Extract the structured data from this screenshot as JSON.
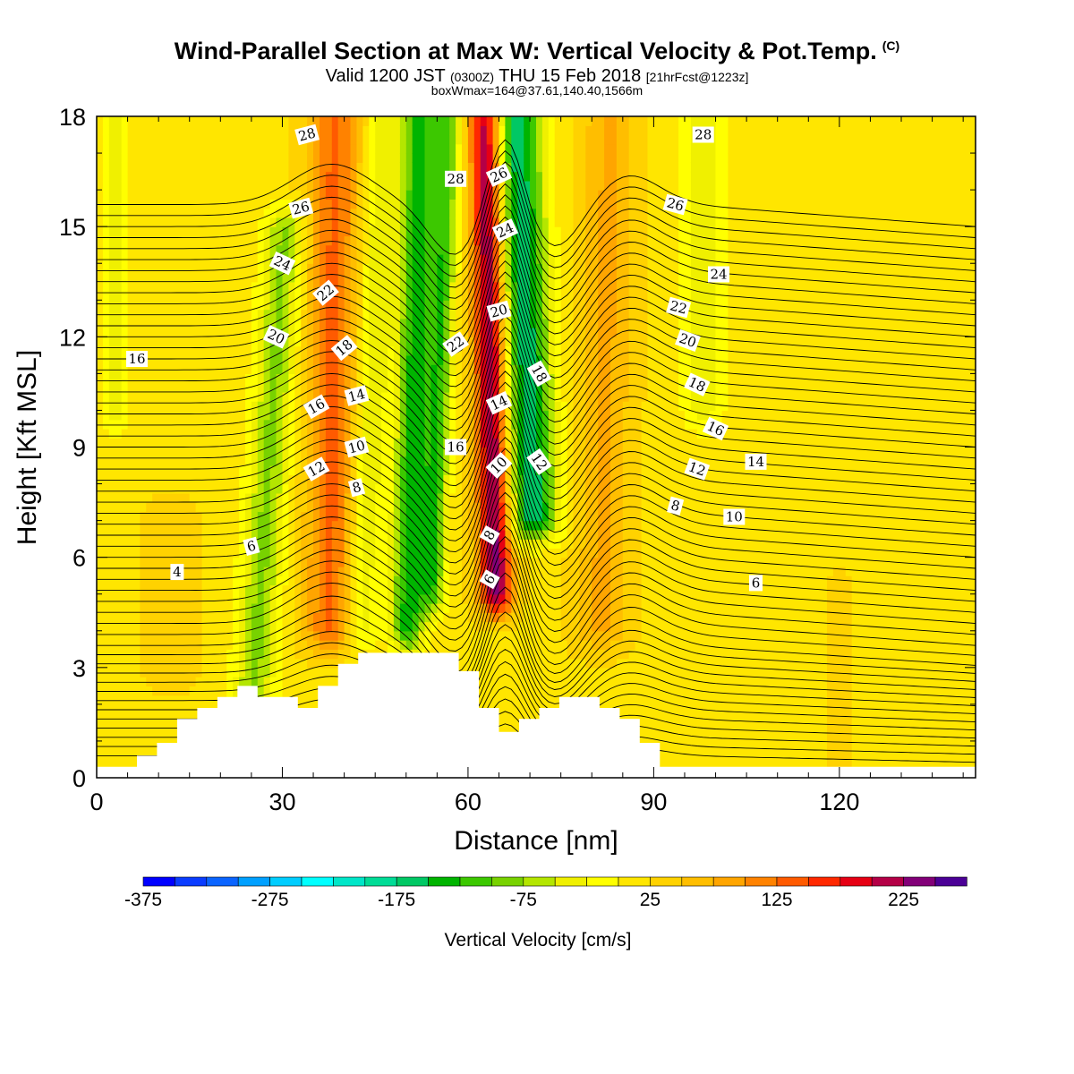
{
  "header": {
    "title": "Wind-Parallel Section at Max W: Vertical Velocity & Pot.Temp.",
    "copyright": "(C)",
    "subtitle_main": "Valid 1200 JST",
    "subtitle_utc": "(0300Z)",
    "subtitle_date": "THU 15 Feb 2018",
    "subtitle_fcst": "[21hrFcst@1223z]",
    "subtitle2": "boxWmax=164@37.61,140.40,1566m"
  },
  "chart_data": {
    "type": "heatmap",
    "title": "Wind-Parallel Section at Max W: Vertical Velocity & Pot.Temp.",
    "xlabel": "Distance [nm]",
    "ylabel": "Height [Kft MSL]",
    "xlim": [
      0,
      142
    ],
    "ylim": [
      0,
      18
    ],
    "x_ticks": [
      0,
      30,
      60,
      90,
      120
    ],
    "y_ticks": [
      0,
      3,
      6,
      9,
      12,
      15,
      18
    ],
    "grid": false,
    "colorbar": {
      "label": "Vertical Velocity [cm/s]",
      "min": -375,
      "max": 250,
      "step": 25,
      "tick_values": [
        -375,
        -275,
        -175,
        -75,
        25,
        125,
        225
      ],
      "tick_labels": [
        "-375",
        "-275",
        "-175",
        "-75",
        "25",
        "125",
        "225"
      ],
      "colors": [
        "#0000ff",
        "#0a3cff",
        "#0a64ff",
        "#00a0ff",
        "#00cdff",
        "#00ffff",
        "#00e6c8",
        "#00dc96",
        "#00c864",
        "#00b400",
        "#3cc800",
        "#78d200",
        "#b4e600",
        "#f0f000",
        "#ffff00",
        "#ffe600",
        "#ffd200",
        "#ffbe00",
        "#ffa500",
        "#ff8200",
        "#ff5a00",
        "#ff2800",
        "#e60014",
        "#b40046",
        "#820078",
        "#4b0096"
      ]
    },
    "velocity_field": {
      "background_cm_s": 20,
      "columns": [
        {
          "x": 3,
          "w": 3,
          "v": -40,
          "y_from": 10,
          "y_to": 18,
          "tilt": 0
        },
        {
          "x": 12,
          "w": 6,
          "v": 40,
          "y_from": 3,
          "y_to": 7,
          "tilt": 0
        },
        {
          "x": 28,
          "w": 5,
          "v": -80,
          "y_from": 2,
          "y_to": 15,
          "tilt": 0.4
        },
        {
          "x": 38,
          "w": 6,
          "v": 130,
          "y_from": 4,
          "y_to": 18,
          "tilt": 0.05
        },
        {
          "x": 44,
          "w": 4,
          "v": -50,
          "y_from": 4,
          "y_to": 18,
          "tilt": 0.3
        },
        {
          "x": 51,
          "w": 4,
          "v": -140,
          "y_from": 4,
          "y_to": 18,
          "tilt": 0.15
        },
        {
          "x": 55,
          "w": 3,
          "v": -110,
          "y_from": 5,
          "y_to": 18,
          "tilt": 0.2
        },
        {
          "x": 64,
          "w": 4,
          "v": 240,
          "y_from": 5,
          "y_to": 18,
          "tilt": -0.12
        },
        {
          "x": 70,
          "w": 6,
          "v": -170,
          "y_from": 7,
          "y_to": 18,
          "tilt": -0.25
        },
        {
          "x": 82,
          "w": 6,
          "v": 80,
          "y_from": 4,
          "y_to": 18,
          "tilt": 0.1
        },
        {
          "x": 98,
          "w": 5,
          "v": -40,
          "y_from": 10,
          "y_to": 18,
          "tilt": 0
        },
        {
          "x": 120,
          "w": 3,
          "v": 35,
          "y_from": 0,
          "y_to": 5,
          "tilt": 0
        }
      ]
    },
    "terrain": {
      "x": [
        0,
        6.5,
        6.5,
        9.75,
        9.75,
        13,
        13,
        16.25,
        16.25,
        19.5,
        19.5,
        22.75,
        22.75,
        26,
        26,
        32.5,
        32.5,
        35.75,
        35.75,
        39,
        39,
        42.25,
        42.25,
        45.5,
        45.5,
        58.5,
        58.5,
        61.75,
        61.75,
        65,
        65,
        68.25,
        68.25,
        71.5,
        71.5,
        74.75,
        74.75,
        81.25,
        81.25,
        84.5,
        84.5,
        87.75,
        87.75,
        91,
        91,
        142
      ],
      "height": [
        0.3,
        0.3,
        0.6,
        0.6,
        0.95,
        0.95,
        1.6,
        1.6,
        1.9,
        1.9,
        2.2,
        2.2,
        2.5,
        2.5,
        2.2,
        2.2,
        1.9,
        1.9,
        2.5,
        2.5,
        3.1,
        3.1,
        3.4,
        3.4,
        3.4,
        3.4,
        2.9,
        2.9,
        1.9,
        1.9,
        1.25,
        1.25,
        1.6,
        1.6,
        1.9,
        1.9,
        2.2,
        2.2,
        1.9,
        1.9,
        1.6,
        1.6,
        0.95,
        0.95,
        0.3,
        0.3
      ]
    },
    "theta_contours": {
      "levels": [
        3,
        3.5,
        4,
        4.5,
        5,
        5.5,
        6,
        6.5,
        7,
        7.5,
        8,
        8.5,
        9,
        9.5,
        10,
        10.5,
        11,
        11.5,
        12,
        12.5,
        13,
        13.5,
        14,
        14.5,
        15,
        15.5,
        16,
        16.5,
        17,
        17.5,
        18,
        18.5,
        19,
        19.5,
        20,
        20.5,
        21,
        21.5,
        22,
        22.5,
        23,
        23.5,
        24,
        24.5,
        25,
        25.5,
        26,
        26.5,
        27,
        27.5,
        28,
        28.5,
        29
      ],
      "base_height_kft": [
        0.6,
        0.85,
        1.1,
        1.35,
        1.6,
        1.85,
        2.1,
        2.35,
        2.6,
        2.85,
        3.1,
        3.35,
        3.6,
        3.9,
        4.2,
        4.5,
        4.8,
        5.1,
        5.4,
        5.7,
        6.0,
        6.3,
        6.6,
        6.9,
        7.2,
        7.5,
        7.8,
        8.1,
        8.4,
        8.7,
        9.0,
        9.3,
        9.6,
        9.9,
        10.2,
        10.5,
        10.8,
        11.1,
        11.4,
        11.7,
        12.0,
        12.3,
        12.6,
        12.9,
        13.2,
        13.5,
        13.8,
        14.1,
        14.4,
        14.7,
        15.0,
        15.3,
        15.6
      ],
      "labels": [
        {
          "text": "28",
          "x": 34,
          "y": 17.5,
          "angle": -15
        },
        {
          "text": "26",
          "x": 33,
          "y": 15.5,
          "angle": -15
        },
        {
          "text": "24",
          "x": 30,
          "y": 14.0,
          "angle": 25
        },
        {
          "text": "22",
          "x": 37,
          "y": 13.2,
          "angle": -40
        },
        {
          "text": "20",
          "x": 29,
          "y": 12.0,
          "angle": 25
        },
        {
          "text": "16",
          "x": 6.5,
          "y": 11.4,
          "angle": 0
        },
        {
          "text": "18",
          "x": 40,
          "y": 11.7,
          "angle": -40
        },
        {
          "text": "14",
          "x": 42,
          "y": 10.4,
          "angle": -15
        },
        {
          "text": "16",
          "x": 35.5,
          "y": 10.1,
          "angle": -30
        },
        {
          "text": "10",
          "x": 42,
          "y": 9.0,
          "angle": -15
        },
        {
          "text": "12",
          "x": 35.5,
          "y": 8.4,
          "angle": -30
        },
        {
          "text": "8",
          "x": 42,
          "y": 7.9,
          "angle": -15
        },
        {
          "text": "6",
          "x": 25,
          "y": 6.3,
          "angle": -15
        },
        {
          "text": "4",
          "x": 13,
          "y": 5.6,
          "angle": 0
        },
        {
          "text": "28",
          "x": 58,
          "y": 16.3,
          "angle": 0
        },
        {
          "text": "26",
          "x": 65,
          "y": 16.4,
          "angle": -25
        },
        {
          "text": "24",
          "x": 66,
          "y": 14.9,
          "angle": -25
        },
        {
          "text": "22",
          "x": 58,
          "y": 11.8,
          "angle": -35
        },
        {
          "text": "20",
          "x": 65,
          "y": 12.7,
          "angle": -15
        },
        {
          "text": "14",
          "x": 65,
          "y": 10.2,
          "angle": -25
        },
        {
          "text": "16",
          "x": 58,
          "y": 9.0,
          "angle": 0
        },
        {
          "text": "10",
          "x": 65,
          "y": 8.5,
          "angle": -45
        },
        {
          "text": "18",
          "x": 71.5,
          "y": 11.0,
          "angle": 60
        },
        {
          "text": "12",
          "x": 71.5,
          "y": 8.6,
          "angle": 55
        },
        {
          "text": "8",
          "x": 63.5,
          "y": 6.6,
          "angle": -60
        },
        {
          "text": "6",
          "x": 63.5,
          "y": 5.4,
          "angle": -60
        },
        {
          "text": "28",
          "x": 98,
          "y": 17.5,
          "angle": 0
        },
        {
          "text": "26",
          "x": 93.5,
          "y": 15.6,
          "angle": 15
        },
        {
          "text": "24",
          "x": 100.5,
          "y": 13.7,
          "angle": 0
        },
        {
          "text": "22",
          "x": 94,
          "y": 12.8,
          "angle": 15
        },
        {
          "text": "20",
          "x": 95.5,
          "y": 11.9,
          "angle": 20
        },
        {
          "text": "18",
          "x": 97,
          "y": 10.7,
          "angle": 25
        },
        {
          "text": "16",
          "x": 100,
          "y": 9.5,
          "angle": 25
        },
        {
          "text": "14",
          "x": 106.5,
          "y": 8.6,
          "angle": 0
        },
        {
          "text": "12",
          "x": 97,
          "y": 8.4,
          "angle": 20
        },
        {
          "text": "8",
          "x": 93.5,
          "y": 7.4,
          "angle": 15
        },
        {
          "text": "10",
          "x": 103,
          "y": 7.1,
          "angle": 0
        },
        {
          "text": "6",
          "x": 106.5,
          "y": 5.3,
          "angle": 0
        }
      ]
    }
  }
}
